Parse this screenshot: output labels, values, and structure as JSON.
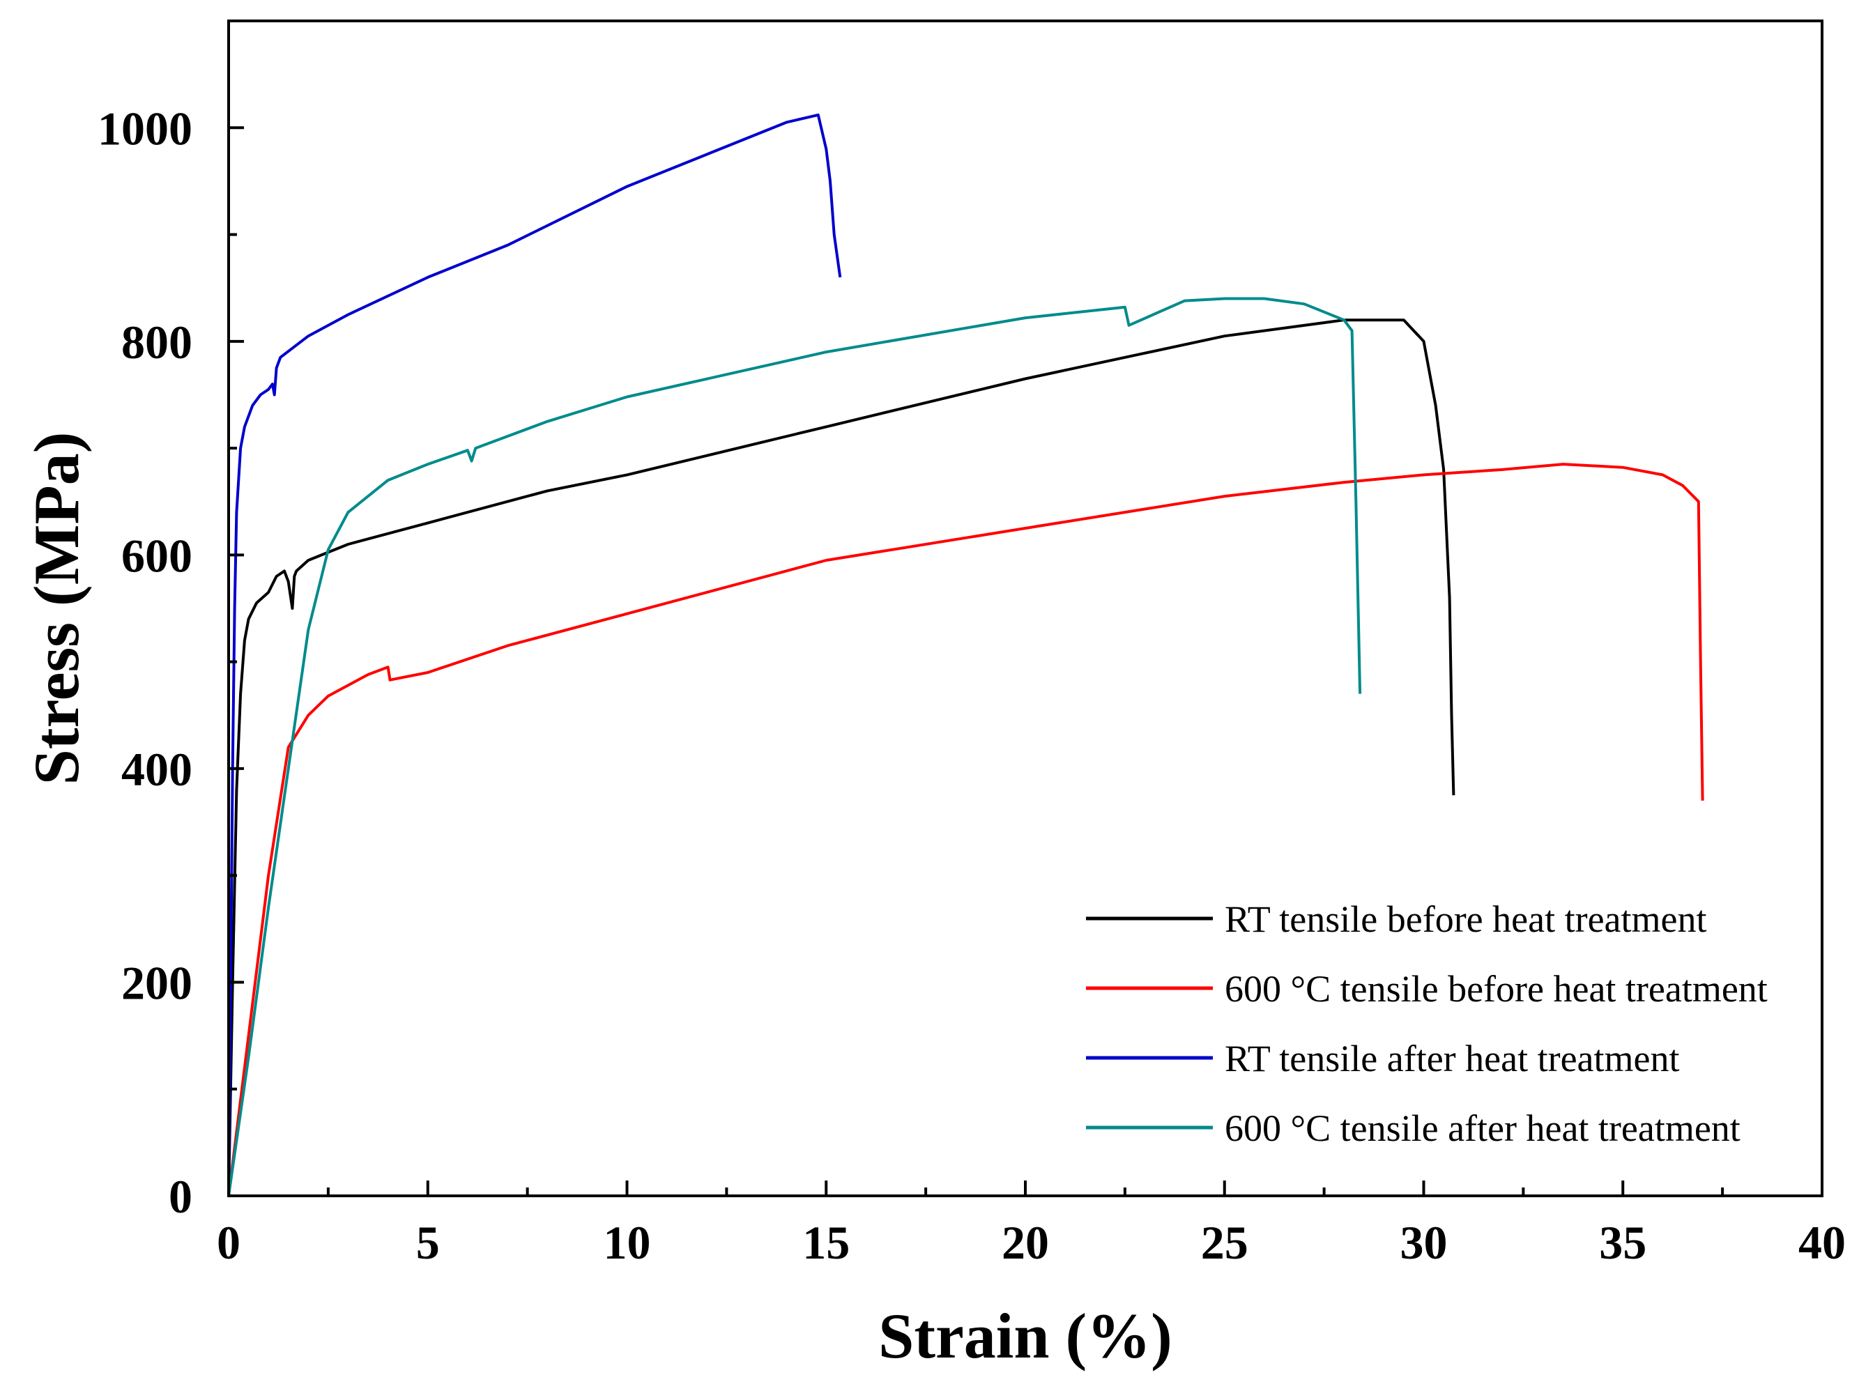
{
  "chart_data": {
    "type": "line",
    "title": "",
    "xlabel": "Strain (%)",
    "ylabel": "Stress (MPa)",
    "xlim": [
      0,
      40
    ],
    "ylim": [
      0,
      1100
    ],
    "xticks": [
      0,
      5,
      10,
      15,
      20,
      25,
      30,
      35,
      40
    ],
    "yticks": [
      0,
      200,
      400,
      600,
      800,
      1000
    ],
    "grid": false,
    "legend_position": "bottom-right",
    "series": [
      {
        "name": "RT tensile before heat treatment",
        "color": "#000000",
        "x": [
          0,
          0.1,
          0.2,
          0.3,
          0.4,
          0.5,
          0.7,
          1.0,
          1.2,
          1.4,
          1.5,
          1.6,
          1.65,
          1.7,
          2.0,
          3.0,
          5.0,
          8.0,
          10.0,
          15.0,
          20.0,
          25.0,
          28.0,
          29.5,
          30.0,
          30.3,
          30.5,
          30.65,
          30.7,
          30.75
        ],
        "y": [
          0,
          200,
          380,
          470,
          520,
          540,
          555,
          565,
          580,
          585,
          575,
          550,
          580,
          585,
          595,
          610,
          630,
          660,
          675,
          720,
          765,
          805,
          820,
          820,
          800,
          740,
          680,
          560,
          450,
          375
        ]
      },
      {
        "name": "600 °C tensile before heat treatment",
        "color": "#ff0000",
        "x": [
          0,
          0.5,
          1.0,
          1.5,
          2.0,
          2.5,
          3.0,
          3.5,
          4.0,
          4.05,
          5.0,
          7.0,
          10.0,
          15.0,
          20.0,
          25.0,
          28.0,
          30.0,
          32.0,
          33.5,
          35.0,
          36.0,
          36.5,
          36.9,
          36.95,
          37.0
        ],
        "y": [
          0,
          150,
          300,
          420,
          450,
          468,
          478,
          488,
          495,
          483,
          490,
          515,
          545,
          595,
          625,
          655,
          668,
          675,
          680,
          685,
          682,
          675,
          665,
          650,
          500,
          370
        ]
      },
      {
        "name": "RT tensile after heat treatment",
        "color": "#0000cc",
        "x": [
          0,
          0.05,
          0.1,
          0.15,
          0.2,
          0.3,
          0.4,
          0.6,
          0.8,
          1.0,
          1.1,
          1.15,
          1.2,
          1.3,
          2.0,
          3.0,
          5.0,
          7.0,
          10.0,
          12.0,
          14.0,
          14.8,
          15.0,
          15.1,
          15.2,
          15.35
        ],
        "y": [
          0,
          200,
          400,
          550,
          640,
          700,
          720,
          740,
          750,
          755,
          760,
          750,
          775,
          785,
          805,
          825,
          860,
          890,
          945,
          975,
          1005,
          1012,
          980,
          950,
          900,
          860
        ]
      },
      {
        "name": "600 °C tensile after heat treatment",
        "color": "#008b8b",
        "x": [
          0,
          0.5,
          1.0,
          1.5,
          2.0,
          2.5,
          3.0,
          4.0,
          5.0,
          6.0,
          6.1,
          6.2,
          8.0,
          10.0,
          15.0,
          20.0,
          22.5,
          22.6,
          24.0,
          25.0,
          26.0,
          27.0,
          28.0,
          28.2,
          28.3,
          28.4
        ],
        "y": [
          0,
          130,
          270,
          400,
          530,
          605,
          640,
          670,
          685,
          698,
          688,
          700,
          725,
          748,
          790,
          822,
          832,
          815,
          838,
          840,
          840,
          835,
          820,
          810,
          650,
          470
        ]
      }
    ]
  }
}
